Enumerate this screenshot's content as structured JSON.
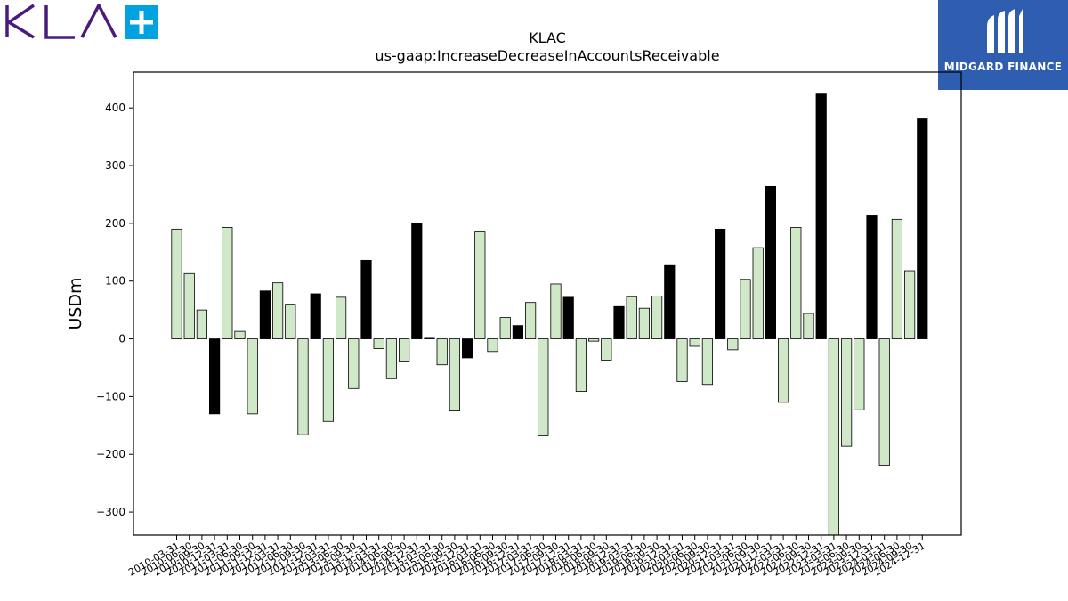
{
  "brand": {
    "logo_text": "KLA",
    "logo_color": "#4b1a7f",
    "logo_plus_color": "#00a3e0",
    "badge_text": "MIDGARD FINANCE",
    "badge_color": "#2f5db0"
  },
  "chart_data": {
    "type": "bar",
    "title": "KLAC",
    "subtitle": "us-gaap:IncreaseDecreaseInAccountsReceivable",
    "xlabel": "",
    "ylabel": "USDm",
    "ylim": [
      -340,
      462
    ],
    "yticks": [
      -300,
      -200,
      -100,
      0,
      100,
      200,
      300,
      400
    ],
    "grid": false,
    "colors": {
      "quarter": "#cfe8c8",
      "fiscal_year_end": "#000000",
      "edge": "#000000"
    },
    "categories": [
      "2010-03-31",
      "2010-06-30",
      "2010-09-30",
      "2010-12-31",
      "2011-03-31",
      "2011-06-30",
      "2011-09-30",
      "2011-12-31",
      "2012-03-31",
      "2012-06-30",
      "2012-09-30",
      "2012-12-31",
      "2013-03-31",
      "2013-06-30",
      "2013-09-30",
      "2013-12-31",
      "2014-03-31",
      "2014-06-30",
      "2014-09-30",
      "2014-12-31",
      "2015-03-31",
      "2015-06-30",
      "2015-09-30",
      "2015-12-31",
      "2016-03-31",
      "2016-06-30",
      "2016-09-30",
      "2016-12-31",
      "2017-03-31",
      "2017-06-30",
      "2017-09-30",
      "2017-12-31",
      "2018-03-31",
      "2018-06-30",
      "2018-09-30",
      "2018-12-31",
      "2019-03-31",
      "2019-06-30",
      "2019-09-30",
      "2019-12-31",
      "2020-03-31",
      "2020-06-30",
      "2020-09-30",
      "2020-12-31",
      "2021-03-31",
      "2021-06-30",
      "2021-09-30",
      "2021-12-31",
      "2022-03-31",
      "2022-06-30",
      "2022-09-30",
      "2022-12-31",
      "2023-03-31",
      "2023-06-30",
      "2023-09-30",
      "2023-12-31",
      "2024-03-31",
      "2024-06-30",
      "2024-09-30",
      "2024-12-31"
    ],
    "values": [
      190,
      113,
      50,
      -130,
      193,
      13,
      -130,
      83,
      97,
      60,
      -166,
      78,
      -143,
      72,
      -86,
      136,
      -17,
      -69,
      -40,
      200,
      1,
      -45,
      -125,
      -33,
      185,
      -22,
      37,
      23,
      63,
      -168,
      95,
      72,
      -91,
      -4,
      -37,
      56,
      73,
      53,
      74,
      127,
      -74,
      -13,
      -79,
      190,
      -19,
      103,
      158,
      264,
      -110,
      193,
      44,
      424,
      -340,
      -186,
      -123,
      213,
      -219,
      207,
      118,
      381
    ],
    "fiscal_year_end": [
      false,
      false,
      false,
      true,
      false,
      false,
      false,
      true,
      false,
      false,
      false,
      true,
      false,
      false,
      false,
      true,
      false,
      false,
      false,
      true,
      false,
      false,
      false,
      true,
      false,
      false,
      false,
      true,
      false,
      false,
      false,
      true,
      false,
      false,
      false,
      true,
      false,
      false,
      false,
      true,
      false,
      false,
      false,
      true,
      false,
      false,
      false,
      true,
      false,
      false,
      false,
      true,
      false,
      false,
      false,
      true,
      false,
      false,
      false,
      true
    ]
  }
}
